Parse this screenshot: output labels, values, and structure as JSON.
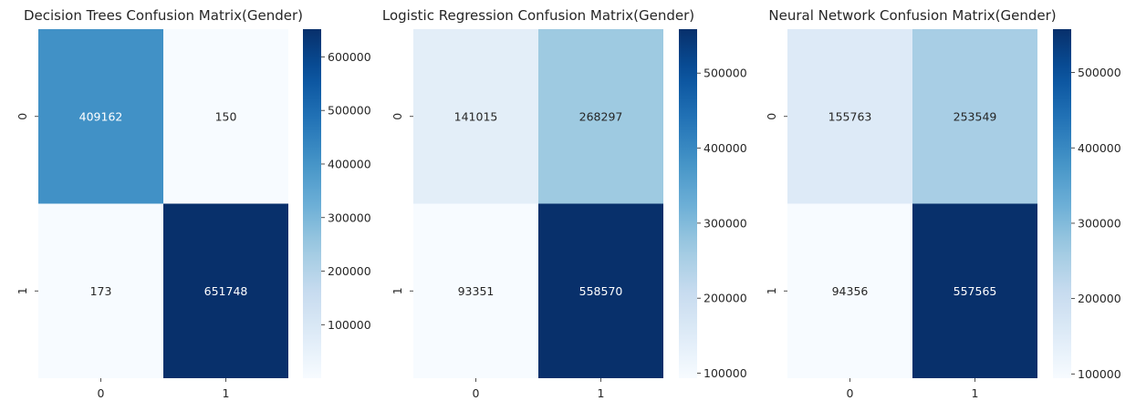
{
  "chart_data": [
    {
      "type": "heatmap",
      "title": "Decision Trees Confusion Matrix(Gender)",
      "x_categories": [
        "0",
        "1"
      ],
      "y_categories": [
        "0",
        "1"
      ],
      "values": [
        [
          409162,
          150
        ],
        [
          173,
          651748
        ]
      ],
      "colormap": "Blues",
      "color_range": [
        150,
        651748
      ],
      "colorbar_ticks": [
        100000,
        200000,
        300000,
        400000,
        500000,
        600000
      ],
      "colorbar_tick_labels": [
        "100000",
        "200000",
        "300000",
        "400000",
        "500000",
        "600000"
      ]
    },
    {
      "type": "heatmap",
      "title": "Logistic Regression Confusion Matrix(Gender)",
      "x_categories": [
        "0",
        "1"
      ],
      "y_categories": [
        "0",
        "1"
      ],
      "values": [
        [
          141015,
          268297
        ],
        [
          93351,
          558570
        ]
      ],
      "colormap": "Blues",
      "color_range": [
        93351,
        558570
      ],
      "colorbar_ticks": [
        100000,
        200000,
        300000,
        400000,
        500000
      ],
      "colorbar_tick_labels": [
        "100000",
        "200000",
        "300000",
        "400000",
        "500000"
      ]
    },
    {
      "type": "heatmap",
      "title": "Neural Network Confusion Matrix(Gender)",
      "x_categories": [
        "0",
        "1"
      ],
      "y_categories": [
        "0",
        "1"
      ],
      "values": [
        [
          155763,
          253549
        ],
        [
          94356,
          557565
        ]
      ],
      "colormap": "Blues",
      "color_range": [
        94356,
        557565
      ],
      "colorbar_ticks": [
        100000,
        200000,
        300000,
        400000,
        500000
      ],
      "colorbar_tick_labels": [
        "100000",
        "200000",
        "300000",
        "400000",
        "500000"
      ]
    }
  ]
}
